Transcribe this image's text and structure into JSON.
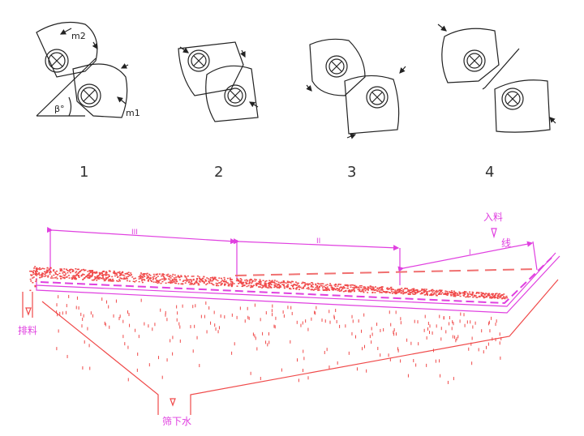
{
  "figures": [
    {
      "number": "1",
      "labels": {
        "m2": "m2",
        "m1": "m1",
        "angle": "β°"
      }
    },
    {
      "number": "2"
    },
    {
      "number": "3"
    },
    {
      "number": "4"
    }
  ],
  "screen_diagram": {
    "zones": [
      "III",
      "II",
      "I"
    ],
    "feed_label": "入料",
    "line_label": "线",
    "discharge_label": "排料",
    "underflow_label": "筛下水"
  },
  "colors": {
    "drawing": "#222222",
    "dimension": "#e040e0",
    "material": "#f04a4a"
  }
}
